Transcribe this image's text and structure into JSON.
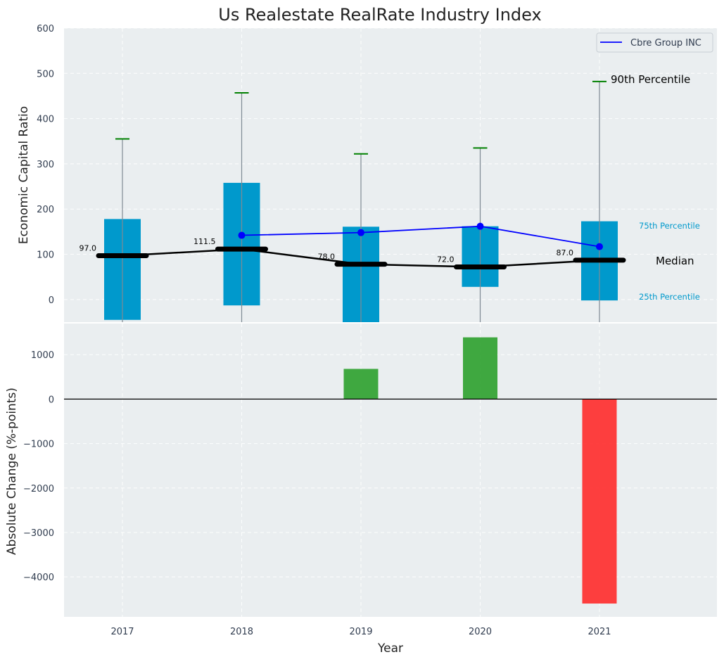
{
  "chart_data": [
    {
      "type": "box",
      "title": "Us Realestate RealRate Industry Index",
      "ylabel": "Economic Capital Ratio",
      "ylim": [
        -50,
        600
      ],
      "yticks": [
        0,
        100,
        200,
        300,
        400,
        500,
        600
      ],
      "categories": [
        "2017",
        "2018",
        "2019",
        "2020",
        "2021"
      ],
      "percentile_25": [
        -45,
        -13,
        -50,
        28,
        -2
      ],
      "percentile_75": [
        178,
        258,
        161,
        162,
        173
      ],
      "percentile_90": [
        355,
        457,
        322,
        335,
        482
      ],
      "median": [
        97.0,
        111.5,
        78.0,
        72.0,
        87.0
      ],
      "median_labels": [
        "97.0",
        "111.5",
        "78.0",
        "72.0",
        "87.0"
      ],
      "series": [
        {
          "name": "Cbre Group INC",
          "x": [
            "2018",
            "2019",
            "2020",
            "2021"
          ],
          "values": [
            142,
            148,
            162,
            117
          ],
          "color": "#0000ff"
        }
      ],
      "annotations": {
        "p90": "90th Percentile",
        "p75": "75th Percentile",
        "median": "Median",
        "p25": "25th Percentile"
      },
      "legend_position": "top-right",
      "grid": true,
      "box_color": "#0099cc",
      "whisker_cap_color": "#008000",
      "median_color": "#000000"
    },
    {
      "type": "bar",
      "xlabel": "Year",
      "ylabel": "Absolute Change (%-points)",
      "ylim": [
        -4900,
        1700
      ],
      "yticks": [
        -4000,
        -3000,
        -2000,
        -1000,
        0,
        1000
      ],
      "ytick_labels": [
        "−4000",
        "−3000",
        "−2000",
        "−1000",
        "0",
        "1000"
      ],
      "categories": [
        "2017",
        "2018",
        "2019",
        "2020",
        "2021"
      ],
      "values": [
        0,
        0,
        680,
        1390,
        -4600
      ],
      "positive_color": "#2ca02c",
      "negative_color": "#ff2a2a",
      "grid": true
    }
  ]
}
